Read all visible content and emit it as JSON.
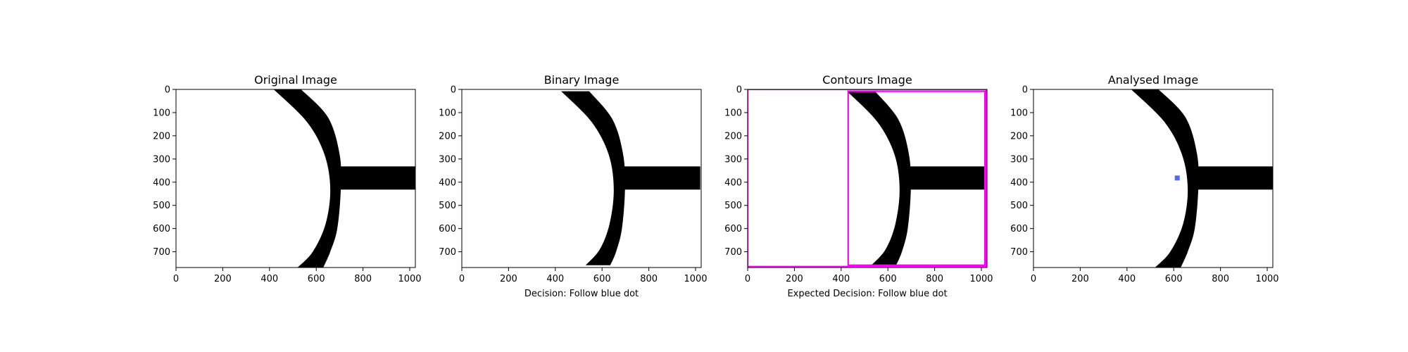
{
  "colors": {
    "shape": "#000000",
    "contour_box": "#ff00ff",
    "blue_dot": "#4a6cf7"
  },
  "chart_data": [
    {
      "type": "image",
      "title": "Original Image",
      "caption": "",
      "xlim": [
        0,
        1024
      ],
      "ylim": [
        768,
        0
      ],
      "xticks": [
        "0",
        "200",
        "400",
        "600",
        "800",
        "1000"
      ],
      "yticks": [
        "0",
        "100",
        "200",
        "300",
        "400",
        "500",
        "600",
        "700"
      ],
      "shape_variant": "full",
      "overlays": []
    },
    {
      "type": "image",
      "title": "Binary Image",
      "caption": "Decision: Follow blue dot",
      "xlim": [
        0,
        1024
      ],
      "ylim": [
        768,
        0
      ],
      "xticks": [
        "0",
        "200",
        "400",
        "600",
        "800",
        "1000"
      ],
      "yticks": [
        "0",
        "100",
        "200",
        "300",
        "400",
        "500",
        "600",
        "700"
      ],
      "shape_variant": "binary",
      "overlays": []
    },
    {
      "type": "image",
      "title": "Contours Image",
      "caption": "Expected Decision: Follow blue dot",
      "xlim": [
        0,
        1024
      ],
      "ylim": [
        768,
        0
      ],
      "xticks": [
        "0",
        "200",
        "400",
        "600",
        "800",
        "1000"
      ],
      "yticks": [
        "0",
        "100",
        "200",
        "300",
        "400",
        "500",
        "600",
        "700"
      ],
      "shape_variant": "binary",
      "overlays": [
        {
          "kind": "rect",
          "x0": 0,
          "y0": 0,
          "x1": 1020,
          "y1": 764
        },
        {
          "kind": "rect",
          "x0": 430,
          "y0": 8,
          "x1": 1015,
          "y1": 758
        }
      ]
    },
    {
      "type": "image",
      "title": "Analysed Image",
      "caption": "",
      "xlim": [
        0,
        1024
      ],
      "ylim": [
        768,
        0
      ],
      "xticks": [
        "0",
        "200",
        "400",
        "600",
        "800",
        "1000"
      ],
      "yticks": [
        "0",
        "100",
        "200",
        "300",
        "400",
        "500",
        "600",
        "700"
      ],
      "shape_variant": "full",
      "overlays": [
        {
          "kind": "dot",
          "x": 615,
          "y": 382
        }
      ]
    }
  ]
}
